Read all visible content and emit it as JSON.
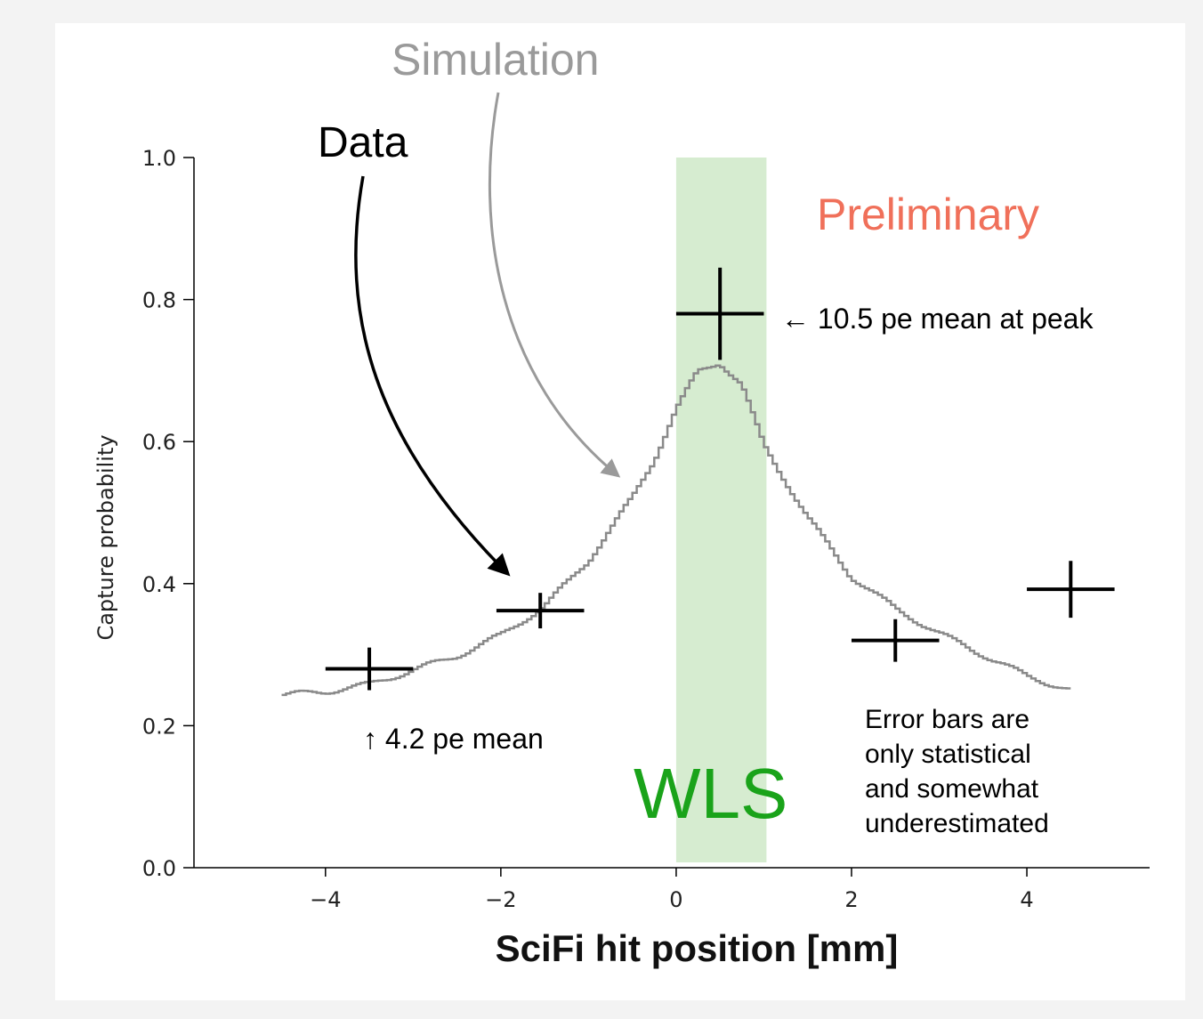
{
  "chart_data": {
    "type": "scatter",
    "xlabel": "SciFi hit position [mm]",
    "ylabel": "Capture probability",
    "xlim": [
      -5.5,
      5.4
    ],
    "ylim": [
      0.0,
      1.0
    ],
    "x_ticks": [
      "−4",
      "−2",
      "0",
      "2",
      "4"
    ],
    "x_tick_values": [
      -4,
      -2,
      0,
      2,
      4
    ],
    "y_ticks": [
      "0.0",
      "0.2",
      "0.4",
      "0.6",
      "0.8",
      "1.0"
    ],
    "y_tick_values": [
      0.0,
      0.2,
      0.4,
      0.6,
      0.8,
      1.0
    ],
    "grid": false,
    "colors": {
      "data": "#000000",
      "simulation": "#8a8a8a",
      "wls_band": "#d6ecd0",
      "wls_text": "#1aa31a",
      "preliminary": "#f0705a",
      "simulation_label": "#9a9a9a"
    },
    "shaded_region": {
      "label": "WLS",
      "x0": 0.0,
      "x1": 1.03
    },
    "series": [
      {
        "name": "Data",
        "kind": "errorbar",
        "points": [
          {
            "x": -3.5,
            "y": 0.28,
            "xerr": 0.5,
            "yerr": 0.03
          },
          {
            "x": -1.55,
            "y": 0.362,
            "xerr": 0.5,
            "yerr": 0.025
          },
          {
            "x": 0.5,
            "y": 0.78,
            "xerr": 0.5,
            "yerr": 0.065
          },
          {
            "x": 2.5,
            "y": 0.32,
            "xerr": 0.5,
            "yerr": 0.03
          },
          {
            "x": 4.5,
            "y": 0.392,
            "xerr": 0.5,
            "yerr": 0.04
          }
        ]
      },
      {
        "name": "Simulation",
        "kind": "step",
        "x": [
          -4.5,
          -4.0,
          -3.5,
          -3.0,
          -2.5,
          -2.0,
          -1.5,
          -1.0,
          -0.5,
          -0.25,
          0.0,
          0.25,
          0.5,
          0.75,
          1.0,
          1.25,
          1.5,
          2.0,
          2.5,
          3.0,
          3.5,
          4.0,
          4.5
        ],
        "y": [
          0.243,
          0.248,
          0.258,
          0.278,
          0.298,
          0.327,
          0.368,
          0.432,
          0.52,
          0.574,
          0.645,
          0.698,
          0.712,
          0.68,
          0.595,
          0.545,
          0.494,
          0.41,
          0.365,
          0.33,
          0.3,
          0.27,
          0.25
        ]
      }
    ],
    "annotations": {
      "data_label": "Data",
      "simulation_label": "Simulation",
      "preliminary": "Preliminary",
      "peak_note": "← 10.5 pe mean at peak",
      "left_note": "↑ 4.2 pe mean",
      "error_note": [
        "Error bars are",
        "only statistical",
        "and somewhat",
        "underestimated"
      ],
      "wls": "WLS"
    }
  }
}
